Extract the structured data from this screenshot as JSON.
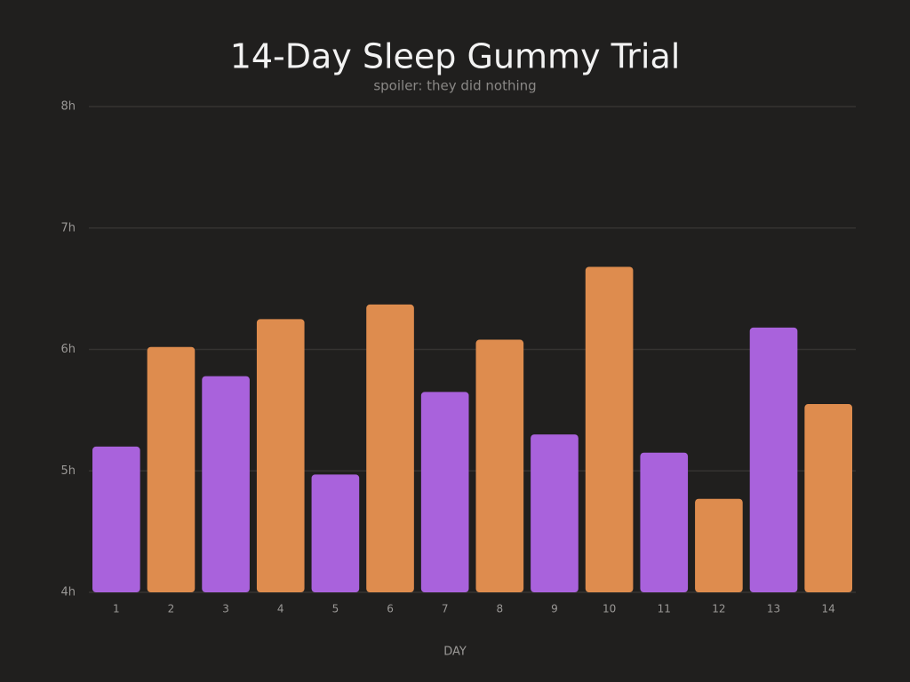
{
  "chart_data": {
    "type": "bar",
    "title": "14-Day Sleep Gummy Trial",
    "subtitle": "spoiler: they did nothing",
    "x_label": "DAY",
    "categories": [
      "1",
      "2",
      "3",
      "4",
      "5",
      "6",
      "7",
      "8",
      "9",
      "10",
      "11",
      "12",
      "13",
      "14"
    ],
    "values": [
      5.2,
      6.02,
      5.78,
      6.25,
      4.97,
      6.37,
      5.65,
      6.08,
      5.3,
      6.68,
      5.15,
      4.77,
      6.18,
      5.55
    ],
    "colors": [
      "#a962dc",
      "#de8c4e",
      "#a962dc",
      "#de8c4e",
      "#a962dc",
      "#de8c4e",
      "#a962dc",
      "#de8c4e",
      "#a962dc",
      "#de8c4e",
      "#a962dc",
      "#de8c4e",
      "#a962dc",
      "#de8c4e"
    ],
    "ylim": [
      4,
      8
    ],
    "yticks": [
      {
        "value": 4,
        "label": "4h"
      },
      {
        "value": 5,
        "label": "5h"
      },
      {
        "value": 6,
        "label": "6h"
      },
      {
        "value": 7,
        "label": "7h"
      },
      {
        "value": 8,
        "label": "8h"
      }
    ],
    "grid": true
  }
}
